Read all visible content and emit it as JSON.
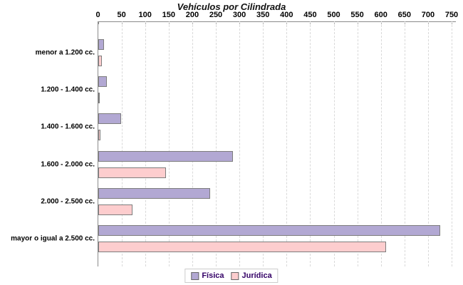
{
  "chart_data": {
    "type": "bar",
    "orientation": "horizontal",
    "title": "Vehículos por Cilindrada",
    "categories": [
      "menor a 1.200 cc.",
      "1.200 - 1.400 cc.",
      "1.400 - 1.600 cc.",
      "1.600 - 2.000 cc.",
      "2.000 - 2.500 cc.",
      "mayor o igual a 2.500 cc."
    ],
    "series": [
      {
        "name": "Física",
        "color": "#b2a8d3",
        "values": [
          12,
          18,
          48,
          285,
          237,
          725
        ]
      },
      {
        "name": "Jurídica",
        "color": "#fdcdce",
        "values": [
          7,
          2,
          5,
          143,
          72,
          610
        ]
      }
    ],
    "xlim": [
      0,
      750
    ],
    "x_tick_step": 50,
    "x_ticks": [
      "0",
      "50",
      "100",
      "150",
      "200",
      "250",
      "300",
      "350",
      "400",
      "450",
      "500",
      "550",
      "600",
      "650",
      "700",
      "750"
    ],
    "grid": "vertical-dashed",
    "legend_position": "bottom-center",
    "bar_border_color": "#7d7d7d",
    "legend_text_color": "#330066"
  }
}
